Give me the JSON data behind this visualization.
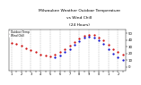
{
  "title": "Milwaukee Weather Outdoor Temperature vs Wind Chill (24 Hours)",
  "title_fontsize": 3.5,
  "bg_color": "#ffffff",
  "plot_bg": "#ffffff",
  "grid_color": "#888888",
  "temp_color": "#cc0000",
  "wind_color": "#0000cc",
  "black_color": "#000000",
  "ylim": [
    -5,
    55
  ],
  "xlim": [
    -0.5,
    23.5
  ],
  "yticks": [
    0,
    10,
    20,
    30,
    40,
    50
  ],
  "marker_size": 1.2,
  "legend_temp": "Outdoor Temp",
  "legend_wind": "Wind Chill",
  "vgrid_positions": [
    0,
    2,
    4,
    6,
    8,
    10,
    12,
    14,
    16,
    18,
    20,
    22
  ],
  "temp_data": [
    [
      0,
      36
    ],
    [
      1,
      34
    ],
    [
      2,
      31
    ],
    [
      3,
      28
    ],
    [
      4,
      25
    ],
    [
      5,
      22
    ],
    [
      6,
      19
    ],
    [
      7,
      17
    ],
    [
      8,
      16
    ],
    [
      9,
      18
    ],
    [
      10,
      22
    ],
    [
      11,
      27
    ],
    [
      12,
      32
    ],
    [
      13,
      37
    ],
    [
      14,
      42
    ],
    [
      15,
      46
    ],
    [
      16,
      48
    ],
    [
      17,
      47
    ],
    [
      18,
      44
    ],
    [
      19,
      39
    ],
    [
      20,
      33
    ],
    [
      21,
      27
    ],
    [
      22,
      22
    ],
    [
      23,
      18
    ]
  ],
  "wind_data": [
    [
      9,
      14
    ],
    [
      10,
      17
    ],
    [
      11,
      22
    ],
    [
      12,
      27
    ],
    [
      13,
      33
    ],
    [
      14,
      38
    ],
    [
      15,
      43
    ],
    [
      16,
      45
    ],
    [
      17,
      44
    ],
    [
      18,
      40
    ],
    [
      19,
      34
    ],
    [
      20,
      27
    ],
    [
      21,
      20
    ],
    [
      22,
      15
    ],
    [
      23,
      11
    ]
  ],
  "xtick_positions": [
    0,
    1,
    2,
    3,
    4,
    5,
    6,
    7,
    8,
    9,
    10,
    11,
    12,
    13,
    14,
    15,
    16,
    17,
    18,
    19,
    20,
    21,
    22,
    23
  ],
  "xtick_labels": [
    "1",
    "",
    "2",
    "",
    "3",
    "",
    "4",
    "",
    "5",
    "",
    "6",
    "",
    "7",
    "",
    "8",
    "",
    "9",
    "",
    "0",
    "",
    "1",
    "",
    "2",
    ""
  ]
}
